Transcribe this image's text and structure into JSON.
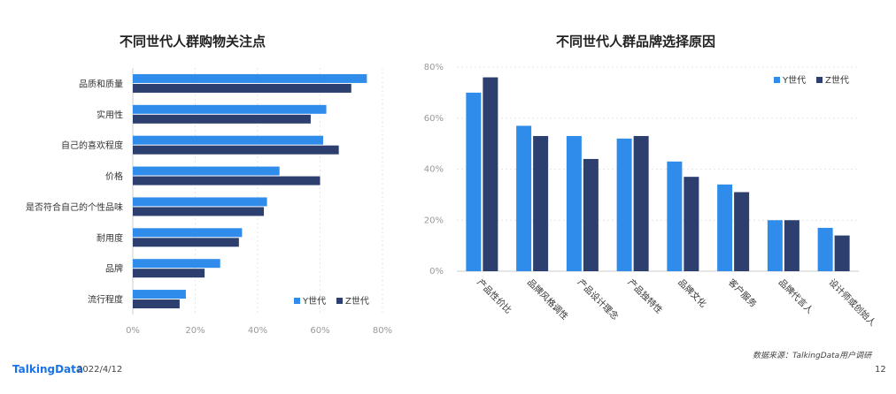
{
  "colors": {
    "y_gen": "#2f8cea",
    "z_gen": "#2d3f6e"
  },
  "footer": {
    "logo": "TalkingData",
    "date": "2022/4/12",
    "page": "12",
    "source": "数据来源：TalkingData用户调研"
  },
  "chart_data": [
    {
      "type": "bar",
      "orientation": "horizontal",
      "title": "不同世代人群购物关注点",
      "categories": [
        "品质和质量",
        "实用性",
        "自己的喜欢程度",
        "价格",
        "是否符合自己的个性品味",
        "耐用度",
        "品牌",
        "流行程度"
      ],
      "series": [
        {
          "name": "Y世代",
          "values": [
            75,
            62,
            61,
            47,
            43,
            35,
            28,
            17
          ]
        },
        {
          "name": "Z世代",
          "values": [
            70,
            57,
            66,
            60,
            42,
            34,
            23,
            15
          ]
        }
      ],
      "xlim": [
        0,
        80
      ],
      "ticks": [
        "0%",
        "20%",
        "40%",
        "60%",
        "80%"
      ],
      "legend_position": "bottom-right",
      "grid": true
    },
    {
      "type": "bar",
      "orientation": "vertical",
      "title": "不同世代人群品牌选择原因",
      "categories": [
        "产品性价比",
        "品牌风格调性",
        "产品设计理念",
        "产品独特性",
        "品牌文化",
        "客户服务",
        "品牌代言人",
        "设计师或创始人"
      ],
      "series": [
        {
          "name": "Y世代",
          "values": [
            70,
            57,
            53,
            52,
            43,
            34,
            20,
            17
          ]
        },
        {
          "name": "Z世代",
          "values": [
            76,
            53,
            44,
            53,
            37,
            31,
            20,
            14
          ]
        }
      ],
      "ylim": [
        0,
        80
      ],
      "ticks": [
        "0%",
        "20%",
        "40%",
        "60%",
        "80%"
      ],
      "legend_position": "top-right",
      "grid": true
    }
  ]
}
